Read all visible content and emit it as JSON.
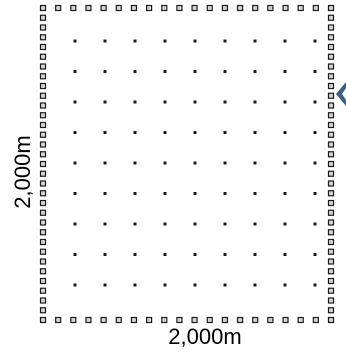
{
  "diagram": {
    "bottom_label": "2,000m",
    "left_label": "2,000m",
    "perimeter": {
      "top_count": 20,
      "side_count": 33,
      "marker_style": "small square with dark border and light center",
      "marker_border_color": "#1a1a1a",
      "marker_fill_color": "#d8d8d8"
    },
    "interior": {
      "rows": 9,
      "cols": 9,
      "marker_style": "tiny dark square",
      "marker_color": "#1a1a1a"
    },
    "pointer": {
      "icon": "chevron-left-icon",
      "color": "#3b5f8a"
    }
  }
}
